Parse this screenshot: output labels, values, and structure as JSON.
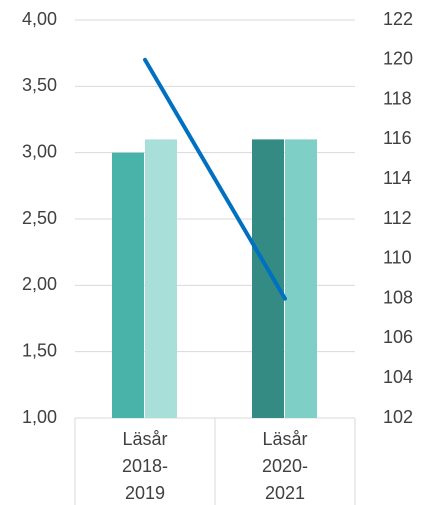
{
  "chart_data": {
    "type": "bar",
    "categories": [
      "Läsår\n2018-\n2019",
      "Läsår\n2020-\n2021"
    ],
    "series": [
      {
        "colors": [
          "#4ab3a9",
          "#338b84"
        ],
        "values": [
          3.0,
          3.1
        ]
      },
      {
        "colors": [
          "#a8dfd9",
          "#7ecfc6"
        ],
        "values": [
          3.1,
          3.1
        ]
      },
      {
        "type": "line",
        "color": "#0070c0",
        "axis": "y2",
        "values": [
          120,
          108
        ]
      }
    ],
    "ylim": [
      1,
      4
    ],
    "yticks": [
      {
        "value": 1,
        "label": "1,00"
      },
      {
        "value": 1.5,
        "label": "1,50"
      },
      {
        "value": 2,
        "label": "2,00"
      },
      {
        "value": 2.5,
        "label": "2,50"
      },
      {
        "value": 3,
        "label": "3,00"
      },
      {
        "value": 3.5,
        "label": "3,50"
      },
      {
        "value": 4,
        "label": "4,00"
      }
    ],
    "y2lim": [
      102,
      122
    ],
    "y2ticks": [
      102,
      104,
      106,
      108,
      110,
      112,
      114,
      116,
      118,
      120,
      122
    ],
    "grid": true
  }
}
